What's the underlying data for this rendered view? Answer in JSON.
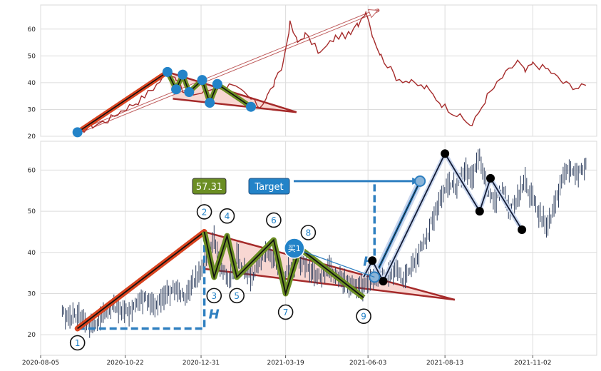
{
  "chart_data": [
    {
      "type": "line",
      "panel": "top-overview",
      "grid": true,
      "ylim": [
        20,
        69
      ],
      "yticks": [
        "20",
        "30",
        "40",
        "50",
        "60"
      ],
      "series": [
        {
          "color": "#a52a2a",
          "x": [
            "2020-09-08",
            "2020-09-22",
            "2020-10-06",
            "2020-10-20",
            "2020-11-03",
            "2020-11-17",
            "2020-12-01",
            "2020-12-08",
            "2020-12-15",
            "2020-12-29",
            "2021-01-12",
            "2021-01-26",
            "2021-02-09",
            "2021-02-23",
            "2021-03-02",
            "2021-03-09",
            "2021-03-16",
            "2021-03-23",
            "2021-03-30",
            "2021-04-06",
            "2021-04-20",
            "2021-05-04",
            "2021-05-18",
            "2021-05-25",
            "2021-06-01",
            "2021-06-08",
            "2021-06-15",
            "2021-06-29",
            "2021-07-13",
            "2021-07-27",
            "2021-08-10",
            "2021-08-24",
            "2021-09-07",
            "2021-09-21",
            "2021-10-05",
            "2021-10-19",
            "2021-10-26",
            "2021-11-02",
            "2021-11-16",
            "2021-11-30",
            "2021-12-14",
            "2021-12-21"
          ],
          "values": [
            21.5,
            24,
            26,
            30,
            33,
            38,
            44,
            42,
            36,
            36,
            38,
            39,
            36,
            31,
            35,
            40,
            46,
            62,
            55,
            58,
            51,
            57,
            58,
            62,
            67,
            57,
            50,
            42,
            40,
            38,
            32,
            28,
            24,
            35,
            42,
            48,
            44,
            47,
            45,
            40,
            38,
            39
          ]
        }
      ],
      "annotations": {
        "pivot_points": [
          {
            "x": "2020-09-08",
            "y": 21.5
          },
          {
            "x": "2020-11-30",
            "y": 44
          },
          {
            "x": "2020-12-08",
            "y": 37.5
          },
          {
            "x": "2020-12-14",
            "y": 43
          },
          {
            "x": "2020-12-20",
            "y": 36.5
          },
          {
            "x": "2021-01-01",
            "y": 41
          },
          {
            "x": "2021-01-08",
            "y": 32.5
          },
          {
            "x": "2021-01-15",
            "y": 39.5
          },
          {
            "x": "2021-02-15",
            "y": 31
          }
        ]
      }
    },
    {
      "type": "line",
      "panel": "bottom-pattern",
      "grid": true,
      "ylim": [
        15,
        67
      ],
      "yticks": [
        "20",
        "30",
        "40",
        "50",
        "60"
      ],
      "xticks": [
        "2020-08-05",
        "2020-10-22",
        "2020-12-31",
        "2021-03-19",
        "2021-06-03",
        "2021-08-13",
        "2021-11-02"
      ],
      "series": [
        {
          "color": "#2f3f5f",
          "x": [
            "2020-08-25",
            "2020-09-01",
            "2020-09-08",
            "2020-09-15",
            "2020-09-22",
            "2020-09-29",
            "2020-10-06",
            "2020-10-13",
            "2020-10-20",
            "2020-10-27",
            "2020-11-03",
            "2020-11-10",
            "2020-11-17",
            "2020-11-24",
            "2020-12-01",
            "2020-12-08",
            "2020-12-15",
            "2020-12-22",
            "2020-12-29",
            "2021-01-05",
            "2021-01-12",
            "2021-01-19",
            "2021-01-26",
            "2021-02-02",
            "2021-02-09",
            "2021-02-16",
            "2021-02-23",
            "2021-03-02",
            "2021-03-09",
            "2021-03-16",
            "2021-03-23",
            "2021-03-30",
            "2021-04-06",
            "2021-04-13",
            "2021-04-20",
            "2021-04-27",
            "2021-05-04",
            "2021-05-11",
            "2021-05-18",
            "2021-05-25",
            "2021-06-01",
            "2021-06-08",
            "2021-06-15",
            "2021-06-22",
            "2021-06-29",
            "2021-07-06",
            "2021-07-13",
            "2021-07-20",
            "2021-07-27",
            "2021-08-03",
            "2021-08-10",
            "2021-08-17",
            "2021-08-24",
            "2021-08-31",
            "2021-09-07",
            "2021-09-14",
            "2021-09-21",
            "2021-09-28",
            "2021-10-05",
            "2021-10-12",
            "2021-10-19",
            "2021-10-26",
            "2021-11-02",
            "2021-11-09",
            "2021-11-16",
            "2021-11-23",
            "2021-11-30",
            "2021-12-07",
            "2021-12-14",
            "2021-12-21"
          ],
          "values": [
            25,
            24,
            25,
            23,
            22,
            24,
            26,
            27,
            25,
            26,
            28,
            29,
            27,
            28,
            30,
            31,
            29,
            32,
            35,
            38,
            43,
            36,
            33,
            39,
            36,
            34,
            38,
            40,
            37,
            34,
            36,
            38,
            37,
            35,
            34,
            36,
            35,
            33,
            32,
            31,
            32,
            33,
            35,
            34,
            37,
            33,
            36,
            40,
            44,
            49,
            54,
            57,
            56,
            60,
            58,
            63,
            56,
            52,
            55,
            50,
            53,
            57,
            53,
            49,
            46,
            52,
            58,
            60,
            59,
            61
          ]
        }
      ],
      "annotations": {
        "pivot_labels": [
          "1",
          "2",
          "3",
          "4",
          "5",
          "6",
          "7",
          "8",
          "9"
        ],
        "pivot_points": [
          {
            "label": "1",
            "x": "2020-09-08",
            "y": 21.5
          },
          {
            "label": "2",
            "x": "2021-01-03",
            "y": 45
          },
          {
            "label": "3",
            "x": "2021-01-12",
            "y": 34
          },
          {
            "label": "4",
            "x": "2021-01-24",
            "y": 44
          },
          {
            "label": "5",
            "x": "2021-02-02",
            "y": 34
          },
          {
            "label": "6",
            "x": "2021-03-08",
            "y": 43
          },
          {
            "label": "7",
            "x": "2021-03-19",
            "y": 30
          },
          {
            "label": "8",
            "x": "2021-04-01",
            "y": 41
          },
          {
            "label": "9",
            "x": "2021-05-30",
            "y": 29
          }
        ],
        "buy_label": "买1",
        "buy_point": {
          "x": "2021-03-27",
          "y": 41
        },
        "height_label": "H",
        "target_label": "Target",
        "target_value": "57.31",
        "target_point": {
          "x": "2021-07-21",
          "y": 57.31
        },
        "post_pivots": [
          {
            "x": "2021-05-30",
            "y": 34
          },
          {
            "x": "2021-06-07",
            "y": 38
          },
          {
            "x": "2021-06-17",
            "y": 33
          },
          {
            "x": "2021-08-13",
            "y": 64
          },
          {
            "x": "2021-09-14",
            "y": 50
          },
          {
            "x": "2021-09-24",
            "y": 58
          },
          {
            "x": "2021-10-23",
            "y": 45.5
          }
        ]
      }
    }
  ],
  "colors": {
    "price_top": "#a52a2a",
    "price_bottom": "#2f3f5f",
    "trend_red": "#d9431f",
    "triangle_line": "#a52a2a",
    "triangle_fill": "#f8d7d2",
    "zigzag_green": "#6b8e23",
    "pivot_blue": "#2383c8",
    "target_box": "#2383c8",
    "value_box": "#6b8e23",
    "forecast_blue": "#2e7fc0"
  }
}
